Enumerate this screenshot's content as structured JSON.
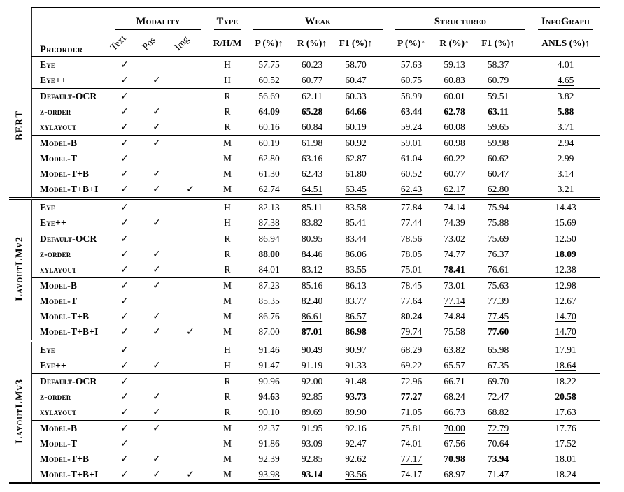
{
  "page": {
    "background": "#ffffff",
    "text_color": "#000000"
  },
  "table": {
    "check_glyph": "✓",
    "header": {
      "preorder": "Preorder",
      "modality": "Modality",
      "modality_cols": [
        "Text",
        "Pos",
        "Img"
      ],
      "type": "Type",
      "type_subheader": "R/H/M",
      "weak": "Weak",
      "structured": "Structured",
      "infograph": "InfoGraph",
      "metric_cols": [
        "P (%)↑",
        "R (%)↑",
        "F1 (%)↑"
      ],
      "anls_col": "ANLS (%)↑"
    },
    "groups": [
      {
        "name": "BERT",
        "sections": [
          {
            "rows": [
              {
                "label": "Eye",
                "modality": [
                  1,
                  0,
                  0
                ],
                "type": "H",
                "values": [
                  "57.75",
                  "60.23",
                  "58.70",
                  "57.63",
                  "59.13",
                  "58.37",
                  "4.01"
                ],
                "styles": "nnnnnnn"
              },
              {
                "label": "Eye++",
                "modality": [
                  1,
                  1,
                  0
                ],
                "type": "H",
                "values": [
                  "60.52",
                  "60.77",
                  "60.47",
                  "60.75",
                  "60.83",
                  "60.79",
                  "4.65"
                ],
                "styles": "nnnnnnu"
              }
            ]
          },
          {
            "rows": [
              {
                "label": "Default-OCR",
                "modality": [
                  1,
                  0,
                  0
                ],
                "type": "R",
                "values": [
                  "56.69",
                  "62.11",
                  "60.33",
                  "58.99",
                  "60.01",
                  "59.51",
                  "3.82"
                ],
                "styles": "nnnnnnn"
              },
              {
                "label": "z-order",
                "modality": [
                  1,
                  1,
                  0
                ],
                "type": "R",
                "values": [
                  "64.09",
                  "65.28",
                  "64.66",
                  "63.44",
                  "62.78",
                  "63.11",
                  "5.88"
                ],
                "styles": "bbbbbbb"
              },
              {
                "label": "xylayout",
                "modality": [
                  1,
                  1,
                  0
                ],
                "type": "R",
                "values": [
                  "60.16",
                  "60.84",
                  "60.19",
                  "59.24",
                  "60.08",
                  "59.65",
                  "3.71"
                ],
                "styles": "nnnnnnn"
              }
            ]
          },
          {
            "rows": [
              {
                "label": "Model-B",
                "modality": [
                  1,
                  1,
                  0
                ],
                "type": "M",
                "values": [
                  "60.19",
                  "61.98",
                  "60.92",
                  "59.01",
                  "60.98",
                  "59.98",
                  "2.94"
                ],
                "styles": "nnnnnnn"
              },
              {
                "label": "Model-T",
                "modality": [
                  1,
                  0,
                  0
                ],
                "type": "M",
                "values": [
                  "62.80",
                  "63.16",
                  "62.87",
                  "61.04",
                  "60.22",
                  "60.62",
                  "2.99"
                ],
                "styles": "unnnnnn"
              },
              {
                "label": "Model-T+B",
                "modality": [
                  1,
                  1,
                  0
                ],
                "type": "M",
                "values": [
                  "61.30",
                  "62.43",
                  "61.80",
                  "60.52",
                  "60.77",
                  "60.47",
                  "3.14"
                ],
                "styles": "nnnnnnn"
              },
              {
                "label": "Model-T+B+I",
                "modality": [
                  1,
                  1,
                  1
                ],
                "type": "M",
                "values": [
                  "62.74",
                  "64.51",
                  "63.45",
                  "62.43",
                  "62.17",
                  "62.80",
                  "3.21"
                ],
                "styles": "nuuuuun"
              }
            ]
          }
        ]
      },
      {
        "name": "LayoutLMv2",
        "sections": [
          {
            "rows": [
              {
                "label": "Eye",
                "modality": [
                  1,
                  0,
                  0
                ],
                "type": "H",
                "values": [
                  "82.13",
                  "85.11",
                  "83.58",
                  "77.84",
                  "74.14",
                  "75.94",
                  "14.43"
                ],
                "styles": "nnnnnnn"
              },
              {
                "label": "Eye++",
                "modality": [
                  1,
                  1,
                  0
                ],
                "type": "H",
                "values": [
                  "87.38",
                  "83.82",
                  "85.41",
                  "77.44",
                  "74.39",
                  "75.88",
                  "15.69"
                ],
                "styles": "unnnnnn"
              }
            ]
          },
          {
            "rows": [
              {
                "label": "Default-OCR",
                "modality": [
                  1,
                  0,
                  0
                ],
                "type": "R",
                "values": [
                  "86.94",
                  "80.95",
                  "83.44",
                  "78.56",
                  "73.02",
                  "75.69",
                  "12.50"
                ],
                "styles": "nnnnnnn"
              },
              {
                "label": "z-order",
                "modality": [
                  1,
                  1,
                  0
                ],
                "type": "R",
                "values": [
                  "88.00",
                  "84.46",
                  "86.06",
                  "78.05",
                  "74.77",
                  "76.37",
                  "18.09"
                ],
                "styles": "bnnnnnb"
              },
              {
                "label": "xylayout",
                "modality": [
                  1,
                  1,
                  0
                ],
                "type": "R",
                "values": [
                  "84.01",
                  "83.12",
                  "83.55",
                  "75.01",
                  "78.41",
                  "76.61",
                  "12.38"
                ],
                "styles": "nnnnbnn"
              }
            ]
          },
          {
            "rows": [
              {
                "label": "Model-B",
                "modality": [
                  1,
                  1,
                  0
                ],
                "type": "M",
                "values": [
                  "87.23",
                  "85.16",
                  "86.13",
                  "78.45",
                  "73.01",
                  "75.63",
                  "12.98"
                ],
                "styles": "nnnnnnn"
              },
              {
                "label": "Model-T",
                "modality": [
                  1,
                  0,
                  0
                ],
                "type": "M",
                "values": [
                  "85.35",
                  "82.40",
                  "83.77",
                  "77.64",
                  "77.14",
                  "77.39",
                  "12.67"
                ],
                "styles": "nnnnunn"
              },
              {
                "label": "Model-T+B",
                "modality": [
                  1,
                  1,
                  0
                ],
                "type": "M",
                "values": [
                  "86.76",
                  "86.61",
                  "86.57",
                  "80.24",
                  "74.84",
                  "77.45",
                  "14.70"
                ],
                "styles": "nuubnuu"
              },
              {
                "label": "Model-T+B+I",
                "modality": [
                  1,
                  1,
                  1
                ],
                "type": "M",
                "values": [
                  "87.00",
                  "87.01",
                  "86.98",
                  "79.74",
                  "75.58",
                  "77.60",
                  "14.70"
                ],
                "styles": "nbbunbu"
              }
            ]
          }
        ]
      },
      {
        "name": "LayoutLMv3",
        "sections": [
          {
            "rows": [
              {
                "label": "Eye",
                "modality": [
                  1,
                  0,
                  0
                ],
                "type": "H",
                "values": [
                  "91.46",
                  "90.49",
                  "90.97",
                  "68.29",
                  "63.82",
                  "65.98",
                  "17.91"
                ],
                "styles": "nnnnnnn"
              },
              {
                "label": "Eye++",
                "modality": [
                  1,
                  1,
                  0
                ],
                "type": "H",
                "values": [
                  "91.47",
                  "91.19",
                  "91.33",
                  "69.22",
                  "65.57",
                  "67.35",
                  "18.64"
                ],
                "styles": "nnnnnnu"
              }
            ]
          },
          {
            "rows": [
              {
                "label": "Default-OCR",
                "modality": [
                  1,
                  0,
                  0
                ],
                "type": "R",
                "values": [
                  "90.96",
                  "92.00",
                  "91.48",
                  "72.96",
                  "66.71",
                  "69.70",
                  "18.22"
                ],
                "styles": "nnnnnnn"
              },
              {
                "label": "z-order",
                "modality": [
                  1,
                  1,
                  0
                ],
                "type": "R",
                "values": [
                  "94.63",
                  "92.85",
                  "93.73",
                  "77.27",
                  "68.24",
                  "72.47",
                  "20.58"
                ],
                "styles": "bnbbnnb"
              },
              {
                "label": "xylayout",
                "modality": [
                  1,
                  1,
                  0
                ],
                "type": "R",
                "values": [
                  "90.10",
                  "89.69",
                  "89.90",
                  "71.05",
                  "66.73",
                  "68.82",
                  "17.63"
                ],
                "styles": "nnnnnnn"
              }
            ]
          },
          {
            "rows": [
              {
                "label": "Model-B",
                "modality": [
                  1,
                  1,
                  0
                ],
                "type": "M",
                "values": [
                  "92.37",
                  "91.95",
                  "92.16",
                  "75.81",
                  "70.00",
                  "72.79",
                  "17.76"
                ],
                "styles": "nnnnuun"
              },
              {
                "label": "Model-T",
                "modality": [
                  1,
                  0,
                  0
                ],
                "type": "M",
                "values": [
                  "91.86",
                  "93.09",
                  "92.47",
                  "74.01",
                  "67.56",
                  "70.64",
                  "17.52"
                ],
                "styles": "nunnnnn"
              },
              {
                "label": "Model-T+B",
                "modality": [
                  1,
                  1,
                  0
                ],
                "type": "M",
                "values": [
                  "92.39",
                  "92.85",
                  "92.62",
                  "77.17",
                  "70.98",
                  "73.94",
                  "18.01"
                ],
                "styles": "nnnubbn"
              },
              {
                "label": "Model-T+B+I",
                "modality": [
                  1,
                  1,
                  1
                ],
                "type": "M",
                "values": [
                  "93.98",
                  "93.14",
                  "93.56",
                  "74.17",
                  "68.97",
                  "71.47",
                  "18.24"
                ],
                "styles": "ubunnnn"
              }
            ]
          }
        ]
      }
    ]
  }
}
